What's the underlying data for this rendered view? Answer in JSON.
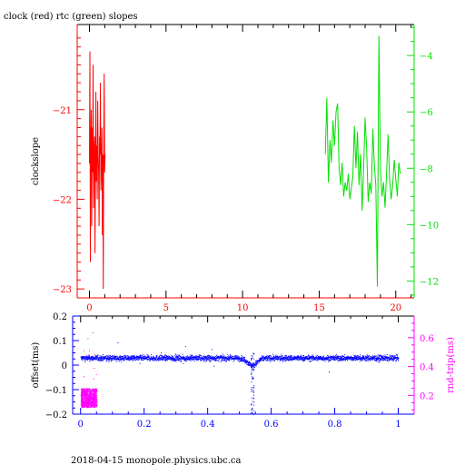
{
  "title": "clock (red) rtc (green) slopes",
  "footer": "2018-04-15 monopole.physics.ubc.ca",
  "colors": {
    "red": "#ff0000",
    "green": "#00e000",
    "blue": "#0000ff",
    "magenta": "#ff00ff",
    "axis": "#000000"
  },
  "chart_data": [
    {
      "type": "line",
      "name": "top-panel",
      "xlabel": "",
      "ylabel": "clockslope",
      "xlim": [
        -0.8,
        21.2
      ],
      "ylim": [
        -23.1,
        -20.05
      ],
      "x_ticks": [
        0,
        5,
        10,
        15,
        20
      ],
      "x_tick_labels": [
        "0",
        "5",
        "10",
        "15",
        "20"
      ],
      "y_ticks": [
        -23,
        -22,
        -21
      ],
      "y_tick_labels": [
        "-23",
        "-22",
        "-21"
      ],
      "ylim_right": [
        -12.6,
        -2.9
      ],
      "y2_ticks": [
        -12,
        -10,
        -8,
        -6,
        -4
      ],
      "y2_tick_labels": [
        "-12",
        "-10",
        "-8",
        "-6",
        "-4"
      ],
      "series": [
        {
          "name": "clock",
          "color": "#ff0000",
          "axis": "left",
          "x": [
            0.0,
            0.03,
            0.06,
            0.09,
            0.12,
            0.15,
            0.18,
            0.21,
            0.24,
            0.27,
            0.3,
            0.33,
            0.36,
            0.39,
            0.42,
            0.45,
            0.48,
            0.51,
            0.54,
            0.57,
            0.6,
            0.63,
            0.66,
            0.69,
            0.72,
            0.75,
            0.78,
            0.81,
            0.84,
            0.87,
            0.9,
            0.93,
            0.96,
            0.99,
            1.02
          ],
          "y": [
            -21.6,
            -20.35,
            -22.7,
            -21.4,
            -21.0,
            -22.3,
            -21.2,
            -21.7,
            -20.5,
            -22.1,
            -21.5,
            -21.3,
            -22.6,
            -21.6,
            -20.8,
            -21.8,
            -21.4,
            -22.0,
            -20.9,
            -21.5,
            -21.7,
            -22.3,
            -21.3,
            -21.5,
            -20.7,
            -21.9,
            -21.6,
            -21.2,
            -22.4,
            -21.5,
            -23.0,
            -21.4,
            -20.6,
            -21.7,
            -21.5
          ]
        },
        {
          "name": "rtc",
          "color": "#00e000",
          "axis": "right",
          "x": [
            15.4,
            15.5,
            15.6,
            15.7,
            15.8,
            15.9,
            16.0,
            16.1,
            16.2,
            16.3,
            16.4,
            16.5,
            16.6,
            16.7,
            16.8,
            16.9,
            17.0,
            17.1,
            17.2,
            17.3,
            17.4,
            17.5,
            17.6,
            17.7,
            17.8,
            17.9,
            18.0,
            18.1,
            18.2,
            18.3,
            18.4,
            18.5,
            18.6,
            18.7,
            18.8,
            18.9,
            19.0,
            19.1,
            19.2,
            19.3,
            19.4,
            19.5,
            19.6,
            19.7,
            19.8,
            19.9,
            20.0,
            20.1,
            20.2,
            20.3
          ],
          "y": [
            -7.5,
            -5.5,
            -8.5,
            -7.0,
            -7.8,
            -6.3,
            -7.2,
            -6.0,
            -5.7,
            -8.0,
            -8.6,
            -7.8,
            -9.0,
            -8.5,
            -8.8,
            -8.2,
            -9.1,
            -8.7,
            -8.3,
            -6.5,
            -8.0,
            -6.7,
            -8.6,
            -7.5,
            -9.5,
            -8.1,
            -6.2,
            -7.3,
            -9.2,
            -8.5,
            -8.9,
            -6.6,
            -7.9,
            -8.6,
            -12.2,
            -3.3,
            -8.0,
            -9.0,
            -8.5,
            -9.4,
            -8.2,
            -6.8,
            -8.4,
            -9.1,
            -8.6,
            -7.7,
            -8.4,
            -9.0,
            -7.8,
            -8.2
          ]
        }
      ]
    },
    {
      "type": "scatter",
      "name": "bottom-panel",
      "xlabel": "",
      "ylabel": "offset(ms)",
      "ylabel_right": "rnd-trip(ms)",
      "xlim": [
        -0.025,
        1.05
      ],
      "ylim": [
        -0.2,
        0.2
      ],
      "x_ticks": [
        0,
        0.2,
        0.4,
        0.6,
        0.8,
        1
      ],
      "x_tick_labels": [
        "0",
        "0.2",
        "0.4",
        "0.6",
        "0.8",
        "1"
      ],
      "y_ticks": [
        -0.2,
        -0.1,
        0,
        0.1,
        0.2
      ],
      "y_tick_labels": [
        "-0.2",
        "-0.1",
        "0",
        "0.1",
        "0.2"
      ],
      "ylim_right": [
        0.07,
        0.75
      ],
      "y2_ticks": [
        0.2,
        0.4,
        0.6
      ],
      "y2_tick_labels": [
        "0.2",
        "0.4",
        "0.6"
      ],
      "series": [
        {
          "name": "offset",
          "color": "#0000ff",
          "axis": "left",
          "x_range": [
            0.0,
            1.0
          ],
          "center": 0.03,
          "spread": 0.012,
          "dip_at": 0.54,
          "dip_depth": -0.03
        },
        {
          "name": "round-trip",
          "color": "#ff00ff",
          "axis": "right",
          "x_range": [
            0.0,
            0.05
          ],
          "y_range": [
            0.12,
            0.25
          ]
        }
      ]
    }
  ]
}
